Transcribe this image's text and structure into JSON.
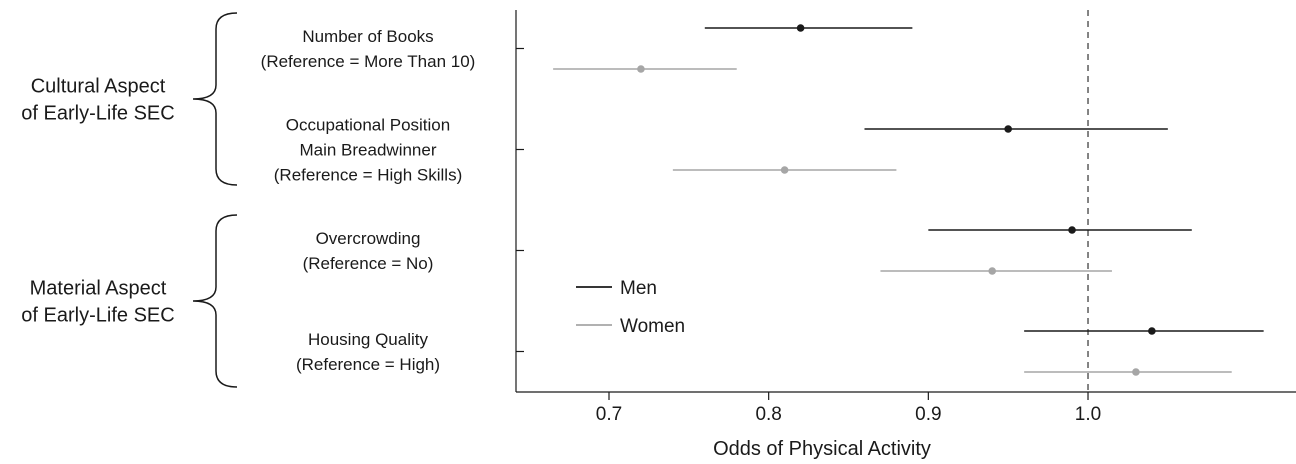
{
  "chart_data": {
    "type": "forest",
    "xlabel": "Odds of Physical Activity",
    "xlim": [
      0.65,
      1.12
    ],
    "xticks": [
      0.7,
      0.8,
      0.9,
      1.0
    ],
    "xtick_labels": [
      "0.7",
      "0.8",
      "0.9",
      "1.0"
    ],
    "reference_line": 1.0,
    "legend": {
      "position": "bottom-left-inside",
      "entries": [
        "Men",
        "Women"
      ]
    },
    "groups": [
      {
        "label_lines": [
          "Cultural Aspect",
          "of Early-Life SEC"
        ],
        "rows": [
          0,
          1
        ]
      },
      {
        "label_lines": [
          "Material Aspect",
          "of Early-Life SEC"
        ],
        "rows": [
          2,
          3
        ]
      }
    ],
    "rows": [
      {
        "label_lines": [
          "Number of Books",
          "(Reference = More Than 10)"
        ]
      },
      {
        "label_lines": [
          "Occupational Position",
          "Main Breadwinner",
          "(Reference = High Skills)"
        ]
      },
      {
        "label_lines": [
          "Overcrowding",
          "(Reference = No)"
        ]
      },
      {
        "label_lines": [
          "Housing Quality",
          "(Reference = High)"
        ]
      }
    ],
    "series": [
      {
        "name": "Men",
        "color": "#1a1a1a",
        "points": [
          {
            "row": 0,
            "estimate": 0.82,
            "lower": 0.76,
            "upper": 0.89
          },
          {
            "row": 1,
            "estimate": 0.95,
            "lower": 0.86,
            "upper": 1.05
          },
          {
            "row": 2,
            "estimate": 0.99,
            "lower": 0.9,
            "upper": 1.065
          },
          {
            "row": 3,
            "estimate": 1.04,
            "lower": 0.96,
            "upper": 1.11
          }
        ]
      },
      {
        "name": "Women",
        "color": "#a6a6a6",
        "points": [
          {
            "row": 0,
            "estimate": 0.72,
            "lower": 0.665,
            "upper": 0.78
          },
          {
            "row": 1,
            "estimate": 0.81,
            "lower": 0.74,
            "upper": 0.88
          },
          {
            "row": 2,
            "estimate": 0.94,
            "lower": 0.87,
            "upper": 1.015
          },
          {
            "row": 3,
            "estimate": 1.03,
            "lower": 0.96,
            "upper": 1.09
          }
        ]
      }
    ]
  }
}
